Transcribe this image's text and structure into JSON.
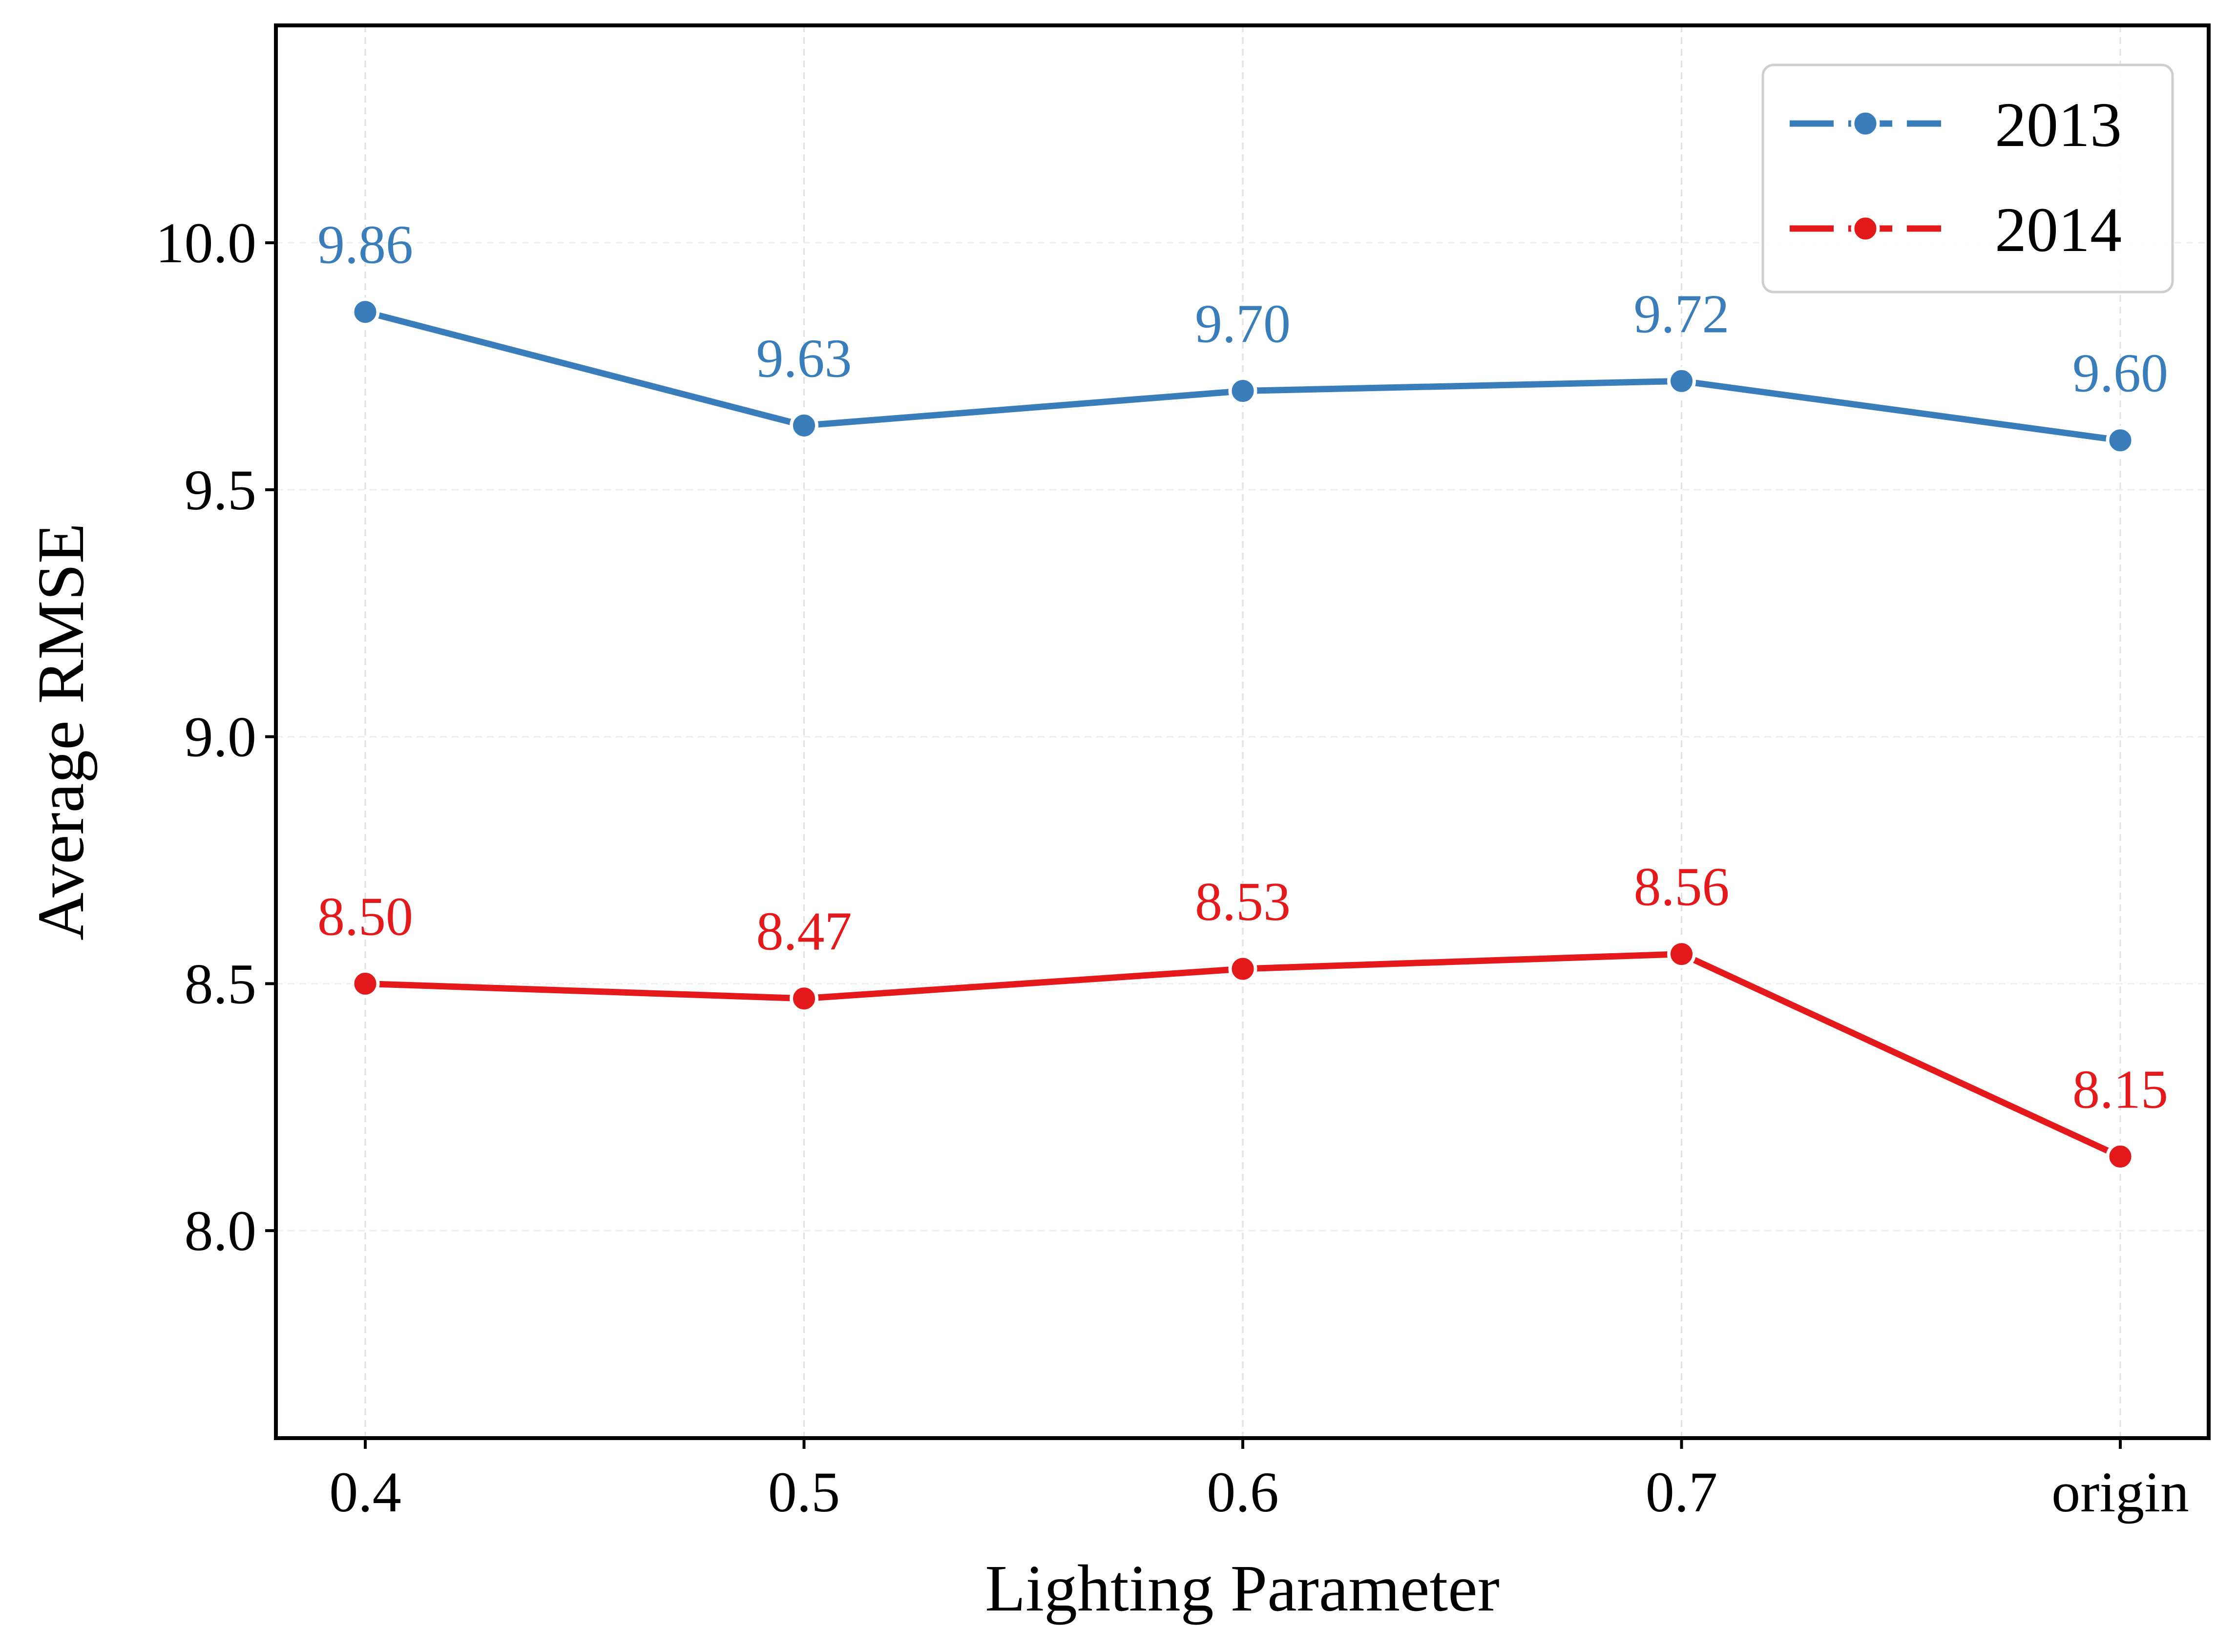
{
  "chart_data": {
    "type": "line",
    "title": "",
    "xlabel": "Lighting Parameter",
    "ylabel": "Average RMSE",
    "categories": [
      "0.4",
      "0.5",
      "0.6",
      "0.7",
      "origin"
    ],
    "ylim": [
      7.58,
      10.44
    ],
    "yticks": [
      "8.0",
      "8.5",
      "9.0",
      "9.5",
      "10.0"
    ],
    "grid": true,
    "legend_position": "top-right",
    "series": [
      {
        "name": "2013",
        "color": "#3a7dbb",
        "values": [
          9.86,
          9.63,
          9.7,
          9.72,
          9.6
        ],
        "labels": [
          "9.86",
          "9.63",
          "9.70",
          "9.72",
          "9.60"
        ]
      },
      {
        "name": "2014",
        "color": "#e3191c",
        "values": [
          8.5,
          8.47,
          8.53,
          8.56,
          8.15
        ],
        "labels": [
          "8.50",
          "8.47",
          "8.53",
          "8.56",
          "8.15"
        ]
      }
    ]
  }
}
